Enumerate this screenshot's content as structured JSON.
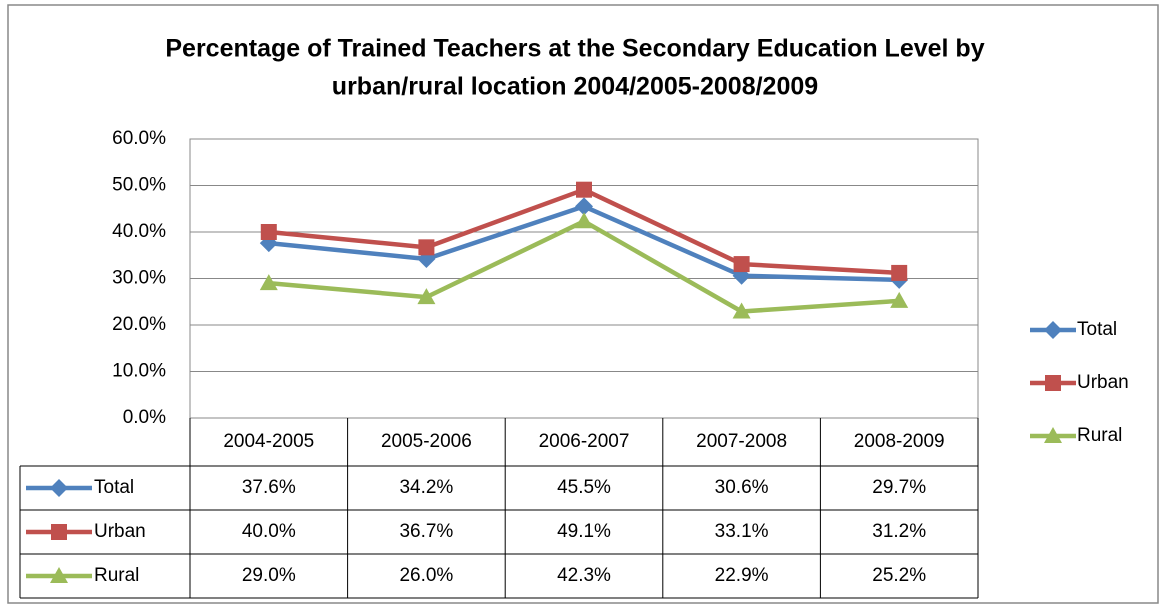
{
  "chart_data": {
    "type": "line",
    "title": "Percentage of Trained Teachers at the Secondary Education Level by",
    "subtitle": "urban/rural location 2004/2005-2008/2009",
    "categories": [
      "2004-2005",
      "2005-2006",
      "2006-2007",
      "2007-2008",
      "2008-2009"
    ],
    "series": [
      {
        "name": "Total",
        "color": "#4f81bd",
        "marker": "diamond",
        "values": [
          37.6,
          34.2,
          45.5,
          30.6,
          29.7
        ],
        "value_labels": [
          "37.6%",
          "34.2%",
          "45.5%",
          "30.6%",
          "29.7%"
        ]
      },
      {
        "name": "Urban",
        "color": "#c0504d",
        "marker": "square",
        "values": [
          40.0,
          36.7,
          49.1,
          33.1,
          31.2
        ],
        "value_labels": [
          "40.0%",
          "36.7%",
          "49.1%",
          "33.1%",
          "31.2%"
        ]
      },
      {
        "name": "Rural",
        "color": "#9bbb59",
        "marker": "triangle",
        "values": [
          29.0,
          26.0,
          42.3,
          22.9,
          25.2
        ],
        "value_labels": [
          "29.0%",
          "26.0%",
          "42.3%",
          "22.9%",
          "25.2%"
        ]
      }
    ],
    "ylim": [
      0,
      60
    ],
    "yticks": [
      {
        "value": 0,
        "label": "0.0%"
      },
      {
        "value": 10,
        "label": "10.0%"
      },
      {
        "value": 20,
        "label": "20.0%"
      },
      {
        "value": 30,
        "label": "30.0%"
      },
      {
        "value": 40,
        "label": "40.0%"
      },
      {
        "value": 50,
        "label": "50.0%"
      },
      {
        "value": 60,
        "label": "60.0%"
      }
    ],
    "grid": true,
    "legend": "right"
  }
}
